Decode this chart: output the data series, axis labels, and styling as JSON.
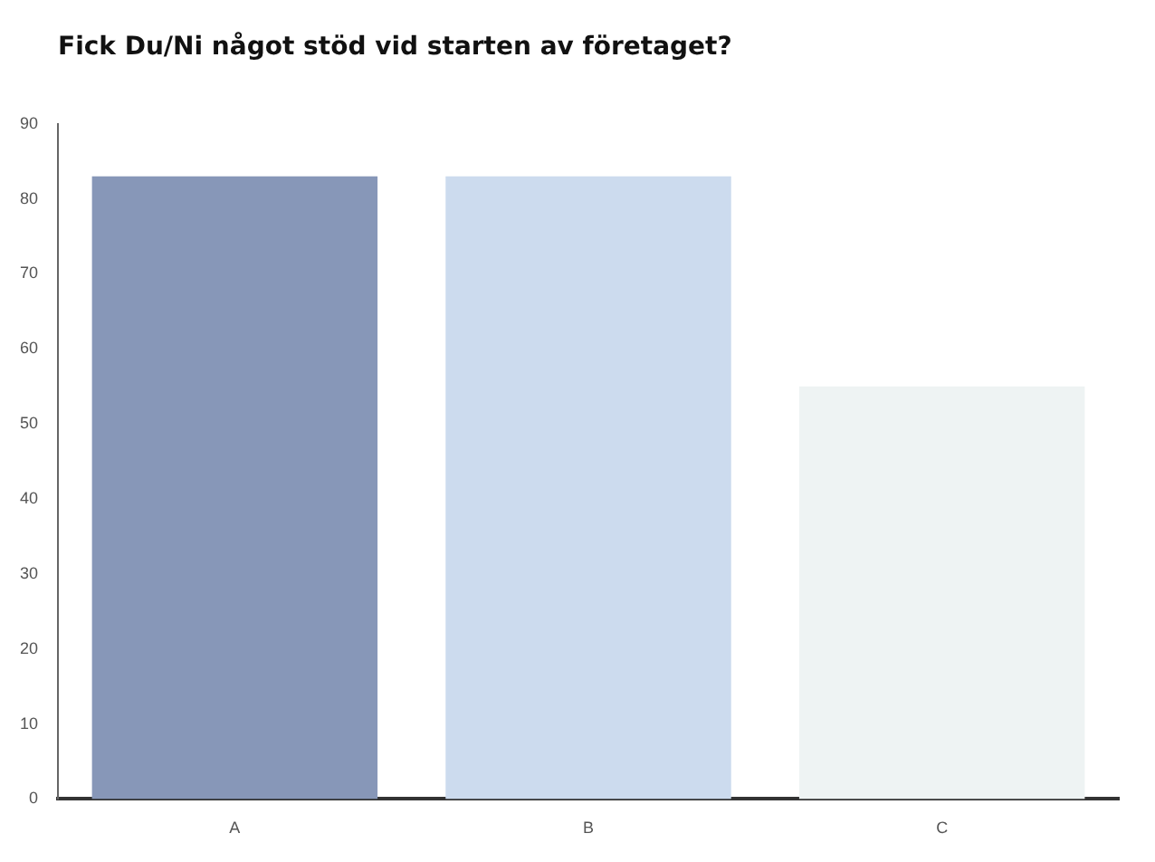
{
  "chart_data": {
    "type": "bar",
    "title": "Fick Du/Ni något stöd vid starten av företaget?",
    "categories": [
      "A",
      "B",
      "C"
    ],
    "values": [
      83,
      83,
      55
    ],
    "colors": [
      "#8797b8",
      "#ccdbee",
      "#eef3f3"
    ],
    "ylim": [
      0,
      90
    ],
    "yticks": [
      0,
      10,
      20,
      30,
      40,
      50,
      60,
      70,
      80,
      90
    ],
    "grid": false
  }
}
